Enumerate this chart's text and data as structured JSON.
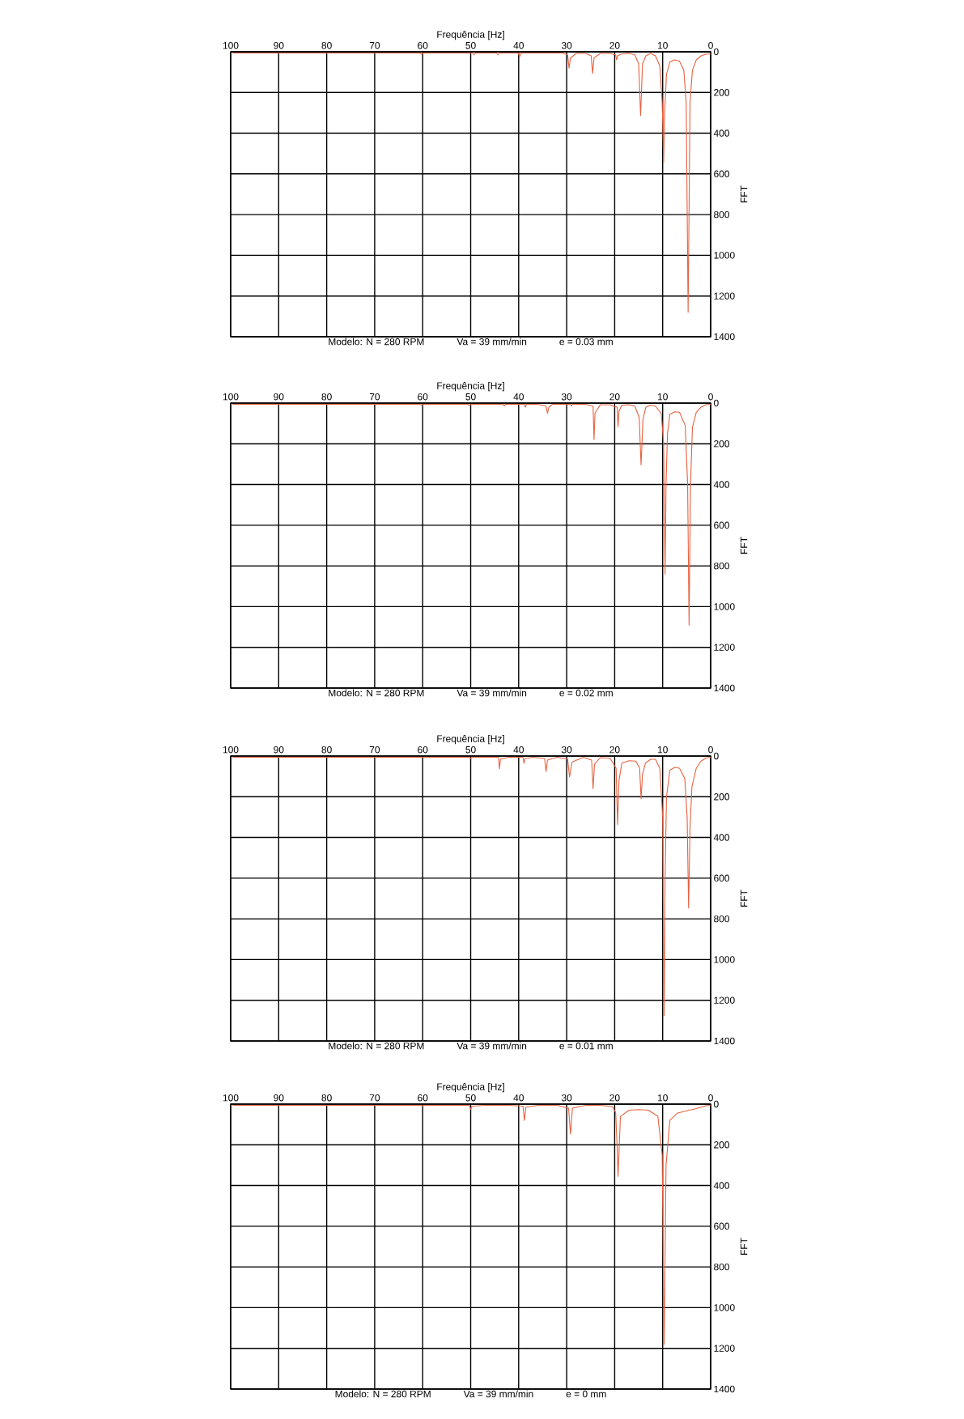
{
  "chart_data": [
    {
      "type": "line",
      "title": "Modelo: N = 280 RPM",
      "annotations": [
        "Va = 39 mm/min",
        "e = 0.03 mm"
      ],
      "xlabel": "Frequência [Hz]",
      "ylabel": "FFT",
      "xlim": [
        100,
        0
      ],
      "ylim": [
        1400,
        0
      ],
      "xticks": [
        0,
        10,
        20,
        30,
        40,
        50,
        60,
        70,
        80,
        90,
        100
      ],
      "yticks": [
        0,
        200,
        400,
        600,
        800,
        1000,
        1200,
        1400
      ],
      "grid": true,
      "series": [
        {
          "color": "#e8613f",
          "x": [
            0,
            1,
            2,
            3,
            3.8,
            4.3,
            4.7,
            5.1,
            5.6,
            6.5,
            7.5,
            8.5,
            9.2,
            9.6,
            9.8,
            10.1,
            10.6,
            11.5,
            12.5,
            13.5,
            14.2,
            14.6,
            15.0,
            15.8,
            17,
            18.5,
            19.4,
            19.6,
            19.8,
            21,
            23,
            24.3,
            24.6,
            24.9,
            26,
            28,
            29.2,
            29.5,
            29.8,
            31,
            35,
            39.5,
            39.8,
            40.1,
            42,
            44,
            44.3,
            44.6,
            48,
            49,
            49.3,
            49.6,
            55,
            59.8,
            60.2,
            60.6,
            75,
            85,
            95,
            99.6
          ],
          "values": [
            10,
            12,
            20,
            40,
            90,
            250,
            1280,
            250,
            90,
            46,
            40,
            50,
            110,
            300,
            544,
            250,
            70,
            20,
            8,
            20,
            60,
            312,
            60,
            15,
            8,
            10,
            20,
            40,
            15,
            8,
            8,
            30,
            106,
            20,
            8,
            8,
            30,
            80,
            15,
            6,
            6,
            6,
            25,
            6,
            6,
            6,
            15,
            6,
            6,
            6,
            15,
            6,
            6,
            6,
            12,
            6,
            6,
            6,
            6,
            6
          ]
        }
      ]
    },
    {
      "type": "line",
      "title": "Modelo: N = 280 RPM",
      "annotations": [
        "Va = 39 mm/min",
        "e = 0.02 mm"
      ],
      "xlabel": "Frequência [Hz]",
      "ylabel": "FFT",
      "xlim": [
        100,
        0
      ],
      "ylim": [
        1400,
        0
      ],
      "xticks": [
        0,
        10,
        20,
        30,
        40,
        50,
        60,
        70,
        80,
        90,
        100
      ],
      "yticks": [
        0,
        200,
        400,
        600,
        800,
        1000,
        1200,
        1400
      ],
      "grid": true,
      "series": [
        {
          "color": "#e8613f",
          "x": [
            0,
            1,
            2,
            3,
            3.8,
            4.2,
            4.5,
            4.8,
            5.3,
            6.5,
            7.5,
            8.5,
            9.0,
            9.3,
            9.5,
            9.8,
            10.3,
            11.5,
            12.5,
            13.5,
            14.1,
            14.5,
            14.9,
            15.8,
            17,
            18.5,
            19.1,
            19.3,
            19.5,
            21,
            23,
            24.1,
            24.3,
            24.5,
            26,
            28.8,
            29,
            29.2,
            33,
            33.7,
            34,
            34.3,
            36,
            38.4,
            38.6,
            38.8,
            42.8,
            43,
            43.2,
            46,
            49.8,
            50.2,
            50.6,
            57,
            59.8,
            60.2,
            60.6,
            75,
            85,
            95,
            99.6
          ],
          "values": [
            6,
            8,
            20,
            45,
            120,
            400,
            1091,
            400,
            110,
            45,
            43,
            55,
            150,
            400,
            840,
            200,
            50,
            15,
            10,
            20,
            80,
            303,
            70,
            15,
            8,
            10,
            40,
            116,
            20,
            8,
            8,
            50,
            179,
            15,
            6,
            6,
            15,
            6,
            6,
            20,
            50,
            15,
            6,
            6,
            20,
            6,
            6,
            15,
            6,
            6,
            6,
            12,
            6,
            6,
            6,
            10,
            6,
            6,
            6,
            6,
            6
          ]
        }
      ]
    },
    {
      "type": "line",
      "title": "Modelo: N = 280 RPM",
      "annotations": [
        "Va = 39 mm/min",
        "e = 0.01 mm"
      ],
      "xlabel": "Frequência [Hz]",
      "ylabel": "FFT",
      "xlim": [
        100,
        0
      ],
      "ylim": [
        1400,
        0
      ],
      "xticks": [
        0,
        10,
        20,
        30,
        40,
        50,
        60,
        70,
        80,
        90,
        100
      ],
      "yticks": [
        0,
        200,
        400,
        600,
        800,
        1000,
        1200,
        1400
      ],
      "grid": true,
      "series": [
        {
          "color": "#e8613f",
          "x": [
            0,
            1,
            2,
            3,
            3.9,
            4.3,
            4.6,
            4.9,
            5.4,
            6.5,
            7.5,
            8.5,
            9.2,
            9.5,
            9.7,
            10,
            10.6,
            11.5,
            12.5,
            13.6,
            14.2,
            14.5,
            14.8,
            15.6,
            17,
            18.5,
            19.1,
            19.4,
            19.7,
            21,
            23,
            24.2,
            24.5,
            24.8,
            26.5,
            28.9,
            29.4,
            29.8,
            32,
            34,
            34.3,
            34.6,
            37,
            38.7,
            38.9,
            39.1,
            42,
            43.8,
            44,
            44.2,
            47,
            49.7,
            50,
            50.3,
            65,
            75,
            85,
            95,
            99.6
          ],
          "values": [
            6,
            10,
            25,
            60,
            150,
            350,
            747,
            300,
            110,
            60,
            56,
            70,
            200,
            600,
            1276,
            300,
            60,
            16,
            16,
            35,
            90,
            209,
            60,
            25,
            23,
            35,
            120,
            336,
            60,
            10,
            8,
            40,
            160,
            20,
            6,
            30,
            103,
            15,
            6,
            20,
            76,
            12,
            6,
            12,
            36,
            6,
            6,
            15,
            63,
            6,
            6,
            6,
            12,
            6,
            6,
            6,
            6,
            6,
            6
          ]
        }
      ]
    },
    {
      "type": "line",
      "title": "Modelo: N = 280 RPM",
      "annotations": [
        "Va = 39 mm/min",
        "e = 0 mm"
      ],
      "xlabel": "Frequência [Hz]",
      "ylabel": "FFT",
      "xlim": [
        100,
        0
      ],
      "ylim": [
        1400,
        0
      ],
      "xticks": [
        0,
        10,
        20,
        30,
        40,
        50,
        60,
        70,
        80,
        90,
        100
      ],
      "yticks": [
        0,
        200,
        400,
        600,
        800,
        1000,
        1200,
        1400
      ],
      "grid": true,
      "series": [
        {
          "color": "#e8613f",
          "x": [
            0,
            1,
            2,
            3,
            5,
            7,
            8.5,
            9.3,
            9.7,
            10.1,
            11,
            13,
            15,
            17,
            18.8,
            19.3,
            19.5,
            19.8,
            20.5,
            23,
            26,
            28.8,
            29.2,
            29.6,
            32,
            36,
            38.5,
            38.8,
            39.1,
            42,
            47,
            49.7,
            50,
            50.3,
            55,
            59.7,
            60,
            60.3,
            75,
            85,
            95,
            99.6
          ],
          "values": [
            6,
            8,
            15,
            22,
            33,
            45,
            80,
            300,
            1180,
            250,
            60,
            30,
            27,
            30,
            60,
            355,
            200,
            40,
            12,
            6,
            6,
            20,
            147,
            20,
            6,
            6,
            15,
            80,
            10,
            6,
            6,
            10,
            25,
            6,
            6,
            6,
            10,
            6,
            6,
            6,
            6,
            6
          ]
        }
      ]
    }
  ]
}
